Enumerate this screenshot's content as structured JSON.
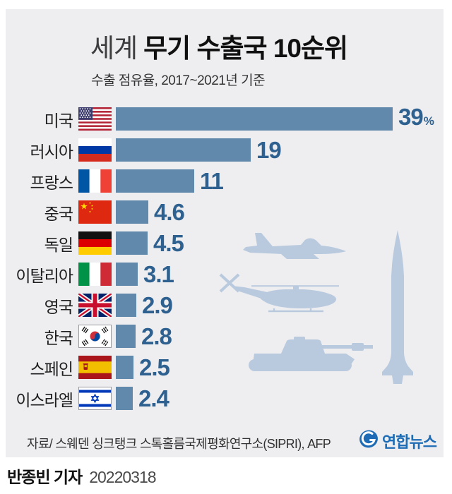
{
  "header": {
    "title_light": "세계",
    "title_bold": "무기 수출국 10순위",
    "subtitle": "수출 점유율, 2017~2021년 기준"
  },
  "chart_data": {
    "type": "bar",
    "orientation": "horizontal",
    "title": "세계 무기 수출국 10순위",
    "subtitle": "수출 점유율, 2017~2021년 기준",
    "categories": [
      "미국",
      "러시아",
      "프랑스",
      "중국",
      "독일",
      "이탈리아",
      "영국",
      "한국",
      "스페인",
      "이스라엘"
    ],
    "values": [
      39,
      19,
      11,
      4.6,
      4.5,
      3.1,
      2.9,
      2.8,
      2.5,
      2.4
    ],
    "value_labels": [
      "39",
      "19",
      "11",
      "4.6",
      "4.5",
      "3.1",
      "2.9",
      "2.8",
      "2.5",
      "2.4"
    ],
    "unit": "%",
    "xlim": [
      0,
      40
    ],
    "grid": false,
    "legend": false,
    "flags": [
      "us",
      "ru",
      "fr",
      "cn",
      "de",
      "it",
      "gb",
      "kr",
      "es",
      "il"
    ],
    "bar_color": "#6089ab",
    "value_color": "#2e6190"
  },
  "decor": {
    "silhouettes": [
      "fighter-jet",
      "helicopter",
      "tank",
      "ballistic-missile"
    ],
    "color": "#b9cadf"
  },
  "footer": {
    "source": "자료/ 스웨덴 싱크탱크 스톡홀름국제평화연구소(SIPRI), AFP",
    "logo_text": "연합뉴스"
  },
  "byline": {
    "author": "반종빈 기자",
    "date": "20220318"
  },
  "colors": {
    "panel_bg": "#eeeef0",
    "page_bg": "#ffffff",
    "logo_blue": "#1e6cb5"
  }
}
